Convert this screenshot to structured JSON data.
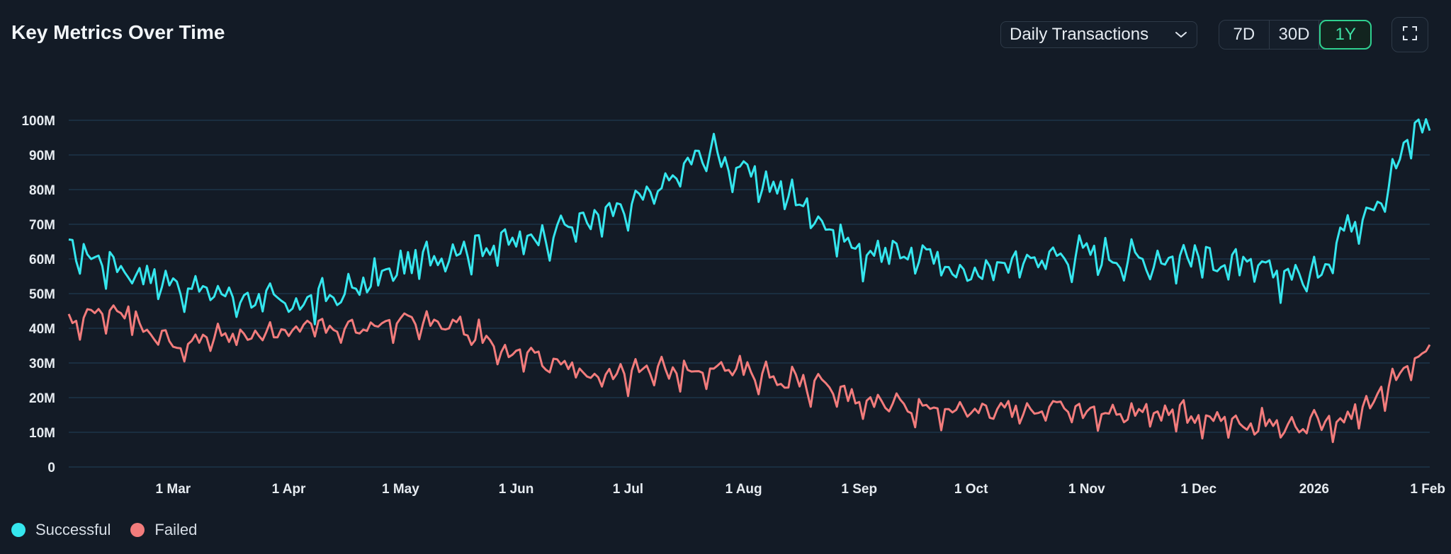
{
  "header": {
    "title": "Key Metrics Over Time",
    "metric_select": {
      "selected": "Daily Transactions"
    },
    "ranges": [
      {
        "label": "7D",
        "active": false
      },
      {
        "label": "30D",
        "active": false
      },
      {
        "label": "1Y",
        "active": true
      }
    ],
    "fullscreen_icon": "expand-icon"
  },
  "colors": {
    "successful": "#35e6ee",
    "failed": "#f27c7c",
    "grid": "#1e3a4f",
    "axis_text": "#e6ebf0",
    "accent": "#2fd08f"
  },
  "chart_data": {
    "type": "line",
    "x_axis": {
      "tick_labels": [
        "1 Mar",
        "1 Apr",
        "1 May",
        "1 Jun",
        "1 Jul",
        "1 Aug",
        "1 Sep",
        "1 Oct",
        "1 Nov",
        "1 Dec",
        "2026",
        "1 Feb"
      ],
      "range": [
        "2025-02-01",
        "2026-02-01"
      ]
    },
    "y_axis": {
      "tick_labels": [
        "0",
        "10M",
        "20M",
        "30M",
        "40M",
        "50M",
        "60M",
        "70M",
        "80M",
        "90M",
        "100M"
      ],
      "ylim": [
        0,
        100000000
      ],
      "grid": true
    },
    "legend": {
      "position": "bottom-left"
    },
    "x": [
      "2025-02-01",
      "2025-02-15",
      "2025-03-01",
      "2025-03-15",
      "2025-04-01",
      "2025-04-15",
      "2025-05-01",
      "2025-05-15",
      "2025-06-01",
      "2025-06-15",
      "2025-07-01",
      "2025-07-15",
      "2025-07-22",
      "2025-08-01",
      "2025-08-15",
      "2025-09-01",
      "2025-09-15",
      "2025-10-01",
      "2025-10-15",
      "2025-11-01",
      "2025-11-15",
      "2025-12-01",
      "2025-12-15",
      "2026-01-01",
      "2026-01-10",
      "2026-01-20",
      "2026-01-28",
      "2026-02-01"
    ],
    "series": [
      {
        "name": "Successful",
        "values": [
          63000000,
          58000000,
          53000000,
          50000000,
          47000000,
          50000000,
          58000000,
          63000000,
          65000000,
          70000000,
          74000000,
          85000000,
          92000000,
          85000000,
          78000000,
          62000000,
          62000000,
          56000000,
          60000000,
          62000000,
          60000000,
          61000000,
          57000000,
          55000000,
          70000000,
          80000000,
          98000000,
          99000000
        ]
      },
      {
        "name": "Failed",
        "values": [
          42000000,
          46000000,
          35000000,
          38000000,
          40000000,
          40000000,
          42000000,
          42000000,
          33000000,
          28000000,
          27000000,
          28000000,
          29000000,
          28000000,
          25000000,
          20000000,
          18000000,
          16000000,
          17000000,
          16000000,
          16000000,
          15000000,
          13000000,
          12000000,
          15000000,
          22000000,
          30000000,
          36000000
        ]
      }
    ]
  }
}
